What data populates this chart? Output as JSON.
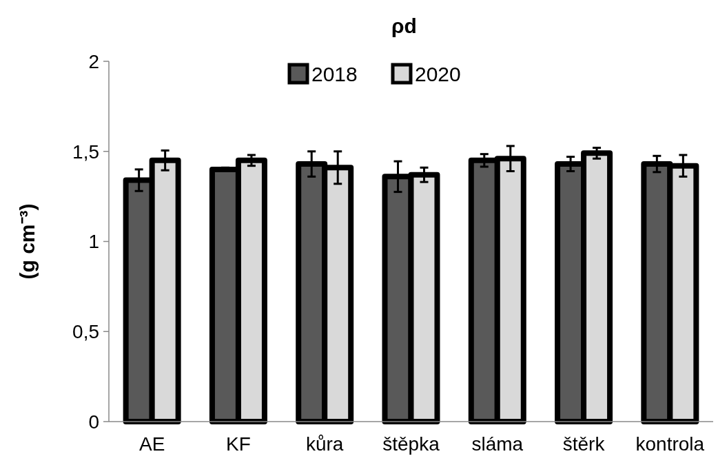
{
  "chart_data": {
    "type": "bar",
    "title": "ρd",
    "ylabel": "(g cm⁻³)",
    "categories": [
      "AE",
      "KF",
      "kůra",
      "štěpka",
      "sláma",
      "štěrk",
      "kontrola"
    ],
    "series": [
      {
        "name": "2018",
        "color": "#595959",
        "values": [
          1.34,
          1.4,
          1.43,
          1.36,
          1.45,
          1.43,
          1.43
        ],
        "errors": [
          0.06,
          0.01,
          0.07,
          0.085,
          0.035,
          0.04,
          0.045
        ]
      },
      {
        "name": "2020",
        "color": "#d9d9d9",
        "values": [
          1.45,
          1.45,
          1.41,
          1.37,
          1.46,
          1.49,
          1.42
        ],
        "errors": [
          0.055,
          0.03,
          0.09,
          0.04,
          0.07,
          0.03,
          0.06
        ]
      }
    ],
    "ylim": [
      0,
      2
    ],
    "yticks": [
      0,
      {
        "value": 0.5,
        "label": "0,5"
      },
      1,
      {
        "value": 1.5,
        "label": "1,5"
      },
      2
    ],
    "grid": false,
    "legend": "top"
  }
}
